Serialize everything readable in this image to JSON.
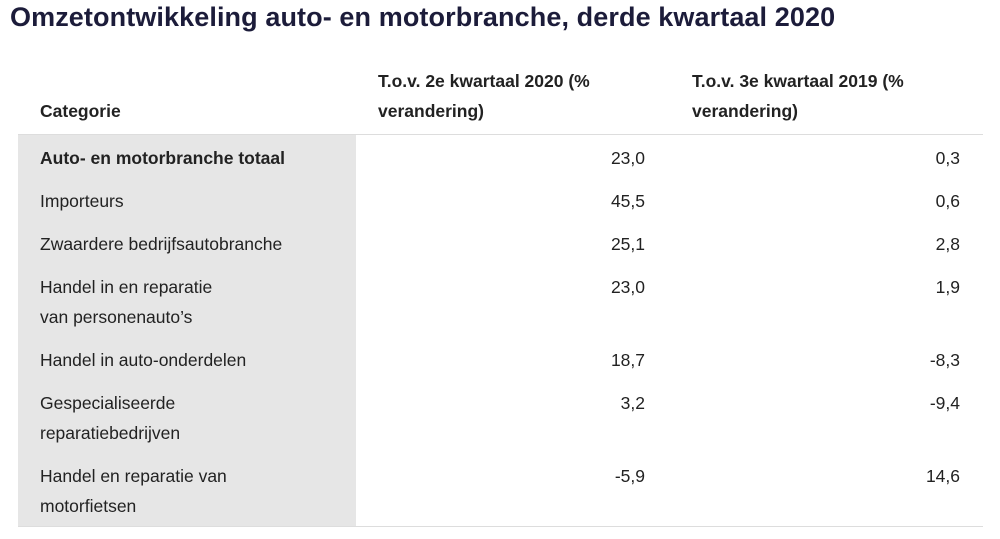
{
  "title": "Omzetontwikkeling auto- en motorbranche, derde kwartaal 2020",
  "table": {
    "headers": [
      [
        "Categorie"
      ],
      [
        "T.o.v. 2e kwartaal 2020 (%",
        "verandering)"
      ],
      [
        "T.o.v. 3e kwartaal 2019 (%",
        "verandering)"
      ]
    ],
    "rows": [
      [
        [
          "Auto- en motorbranche totaal"
        ],
        "23,0",
        "0,3"
      ],
      [
        [
          "Importeurs"
        ],
        "45,5",
        "0,6"
      ],
      [
        [
          "Zwaardere bedrijfsautobranche"
        ],
        "25,1",
        "2,8"
      ],
      [
        [
          "Handel in en reparatie",
          "van personenauto’s"
        ],
        "23,0",
        "1,9"
      ],
      [
        [
          "Handel in auto-onderdelen"
        ],
        "18,7",
        "-8,3"
      ],
      [
        [
          "Gespecialiseerde",
          "reparatiebedrijven"
        ],
        "3,2",
        "-9,4"
      ],
      [
        [
          "Handel en reparatie van",
          "motorfietsen"
        ],
        "-5,9",
        "14,6"
      ]
    ]
  }
}
